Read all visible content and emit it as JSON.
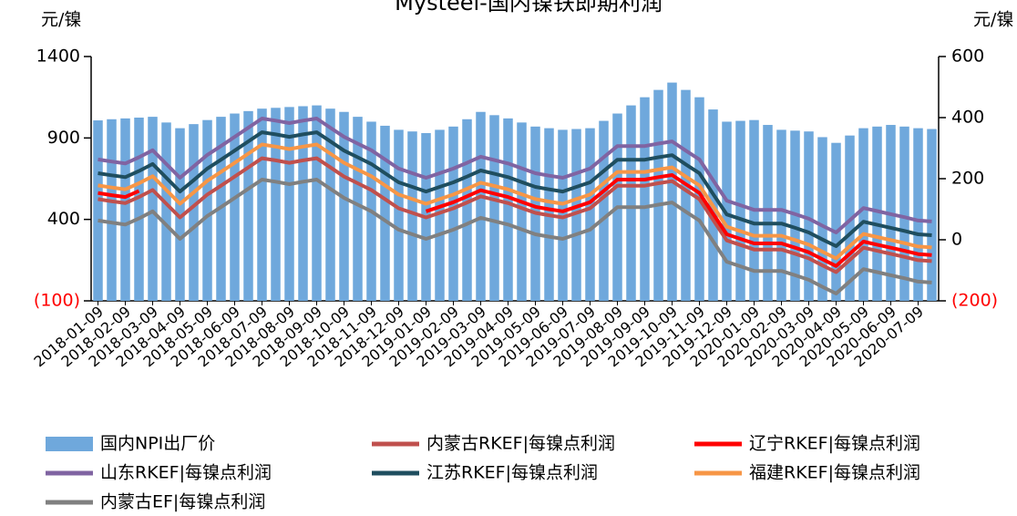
{
  "chart_data": {
    "type": "bar",
    "title": "Mysteel-国内镍铁即期利润",
    "y_label": "元/镍",
    "y2_label": "元/镍",
    "ylim": [
      -100,
      1400
    ],
    "yticks": [
      {
        "value": -100,
        "label": "(100)"
      },
      400,
      900,
      1400
    ],
    "y2lim": [
      -200,
      600
    ],
    "y2ticks": [
      {
        "value": -200,
        "label": "(200)"
      },
      0,
      200,
      400,
      600
    ],
    "categories": [
      "2018-01-09",
      null,
      "2018-02-09",
      null,
      "2018-03-09",
      null,
      "2018-04-09",
      null,
      "2018-05-09",
      null,
      "2018-06-09",
      null,
      "2018-07-09",
      null,
      "2018-08-09",
      null,
      "2018-09-09",
      null,
      "2018-10-09",
      null,
      "2018-11-09",
      null,
      "2018-12-09",
      null,
      "2019-01-09",
      null,
      "2019-02-09",
      null,
      "2019-03-09",
      null,
      "2019-04-09",
      null,
      "2019-05-09",
      null,
      "2019-06-09",
      null,
      "2019-07-09",
      null,
      "2019-08-09",
      null,
      "2019-09-09",
      null,
      "2019-10-09",
      null,
      "2019-11-09",
      null,
      "2019-12-09",
      null,
      "2020-01-09",
      null,
      "2020-02-09",
      null,
      "2020-03-09",
      null,
      "2020-04-09",
      null,
      "2020-05-09",
      null,
      "2020-06-09",
      null,
      "2020-07-09",
      null
    ],
    "series": [
      {
        "name": "国内NPI出厂价",
        "type": "bar",
        "axis": "y",
        "color": "#6fa8dc",
        "values": [
          1008,
          1015,
          1020,
          1025,
          1030,
          995,
          960,
          985,
          1010,
          1030,
          1050,
          1065,
          1080,
          1085,
          1090,
          1095,
          1100,
          1080,
          1060,
          1030,
          1000,
          975,
          950,
          940,
          930,
          950,
          970,
          1015,
          1060,
          1040,
          1020,
          995,
          970,
          960,
          950,
          955,
          960,
          1005,
          1050,
          1100,
          1150,
          1195,
          1240,
          1195,
          1150,
          1075,
          1000,
          1005,
          1010,
          980,
          950,
          945,
          940,
          905,
          870,
          915,
          960,
          970,
          980,
          970,
          960,
          955
        ]
      },
      {
        "name": "内蒙古RKEF|每镍点利润",
        "type": "line",
        "axis": "y2",
        "color": "#c0504d",
        "values": [
          133,
          126,
          120,
          140,
          163,
          118,
          73,
          110,
          148,
          177,
          207,
          237,
          267,
          260,
          252,
          260,
          267,
          237,
          207,
          185,
          163,
          133,
          103,
          88,
          73,
          88,
          103,
          122,
          142,
          131,
          120,
          104,
          88,
          80,
          73,
          88,
          103,
          140,
          177,
          177,
          177,
          185,
          192,
          162,
          133,
          65,
          -2,
          -17,
          -32,
          -32,
          -32,
          -46,
          -61,
          -84,
          -106,
          -66,
          -26,
          -36,
          -46,
          -56,
          -67,
          -70
        ]
      },
      {
        "name": "辽宁RKEF|每镍点利润",
        "type": "line",
        "axis": "y2",
        "color": "#ff0000",
        "values": [
          153,
          146,
          140,
          160,
          null,
          null,
          null,
          null,
          null,
          null,
          null,
          null,
          null,
          null,
          null,
          null,
          null,
          null,
          null,
          null,
          null,
          null,
          null,
          null,
          93,
          108,
          123,
          142,
          162,
          151,
          140,
          124,
          108,
          100,
          93,
          108,
          123,
          160,
          197,
          197,
          197,
          205,
          212,
          182,
          153,
          85,
          18,
          3,
          -12,
          -12,
          -12,
          -26,
          -41,
          -64,
          -86,
          -46,
          -6,
          -16,
          -26,
          -36,
          -47,
          -50
        ]
      },
      {
        "name": "山东RKEF|每镍点利润",
        "type": "line",
        "axis": "y2",
        "color": "#8064a2",
        "values": [
          263,
          256,
          250,
          270,
          293,
          248,
          203,
          240,
          278,
          307,
          337,
          367,
          397,
          390,
          382,
          390,
          397,
          367,
          337,
          315,
          293,
          263,
          233,
          218,
          203,
          218,
          233,
          252,
          272,
          261,
          250,
          234,
          218,
          210,
          203,
          218,
          233,
          270,
          307,
          307,
          307,
          315,
          322,
          292,
          263,
          195,
          128,
          113,
          98,
          98,
          98,
          84,
          69,
          46,
          24,
          64,
          104,
          94,
          84,
          74,
          63,
          60
        ]
      },
      {
        "name": "江苏RKEF|每镍点利润",
        "type": "line",
        "axis": "y2",
        "color": "#1f4e5f",
        "values": [
          218,
          211,
          205,
          225,
          248,
          203,
          158,
          195,
          233,
          262,
          292,
          322,
          352,
          345,
          337,
          345,
          352,
          322,
          292,
          270,
          248,
          218,
          188,
          173,
          158,
          173,
          188,
          207,
          227,
          216,
          205,
          189,
          173,
          165,
          158,
          173,
          188,
          225,
          262,
          262,
          262,
          270,
          277,
          247,
          218,
          150,
          83,
          68,
          53,
          53,
          53,
          39,
          24,
          1,
          -21,
          19,
          59,
          49,
          39,
          29,
          18,
          15
        ]
      },
      {
        "name": "福建RKEF|每镍点利润",
        "type": "line",
        "axis": "y2",
        "color": "#f79646",
        "values": [
          178,
          171,
          165,
          185,
          208,
          163,
          118,
          155,
          193,
          222,
          252,
          282,
          312,
          305,
          297,
          305,
          312,
          282,
          252,
          230,
          208,
          178,
          148,
          133,
          118,
          133,
          148,
          167,
          187,
          176,
          165,
          149,
          133,
          125,
          118,
          133,
          148,
          185,
          222,
          222,
          222,
          230,
          237,
          207,
          178,
          110,
          43,
          28,
          13,
          13,
          13,
          -1,
          -16,
          -39,
          -61,
          -21,
          19,
          9,
          -1,
          -11,
          -22,
          -25
        ]
      },
      {
        "name": "内蒙古EF|每镍点利润",
        "type": "line",
        "axis": "y2",
        "color": "#808080",
        "values": [
          63,
          56,
          50,
          70,
          93,
          48,
          3,
          40,
          78,
          107,
          137,
          167,
          197,
          190,
          182,
          190,
          197,
          167,
          137,
          115,
          93,
          63,
          33,
          18,
          3,
          18,
          33,
          52,
          72,
          61,
          50,
          34,
          18,
          10,
          3,
          18,
          33,
          70,
          107,
          107,
          107,
          115,
          122,
          92,
          63,
          -5,
          -72,
          -87,
          -102,
          -102,
          -102,
          -116,
          -131,
          -154,
          -176,
          -136,
          -96,
          -106,
          -116,
          -126,
          -137,
          -140
        ]
      }
    ]
  }
}
